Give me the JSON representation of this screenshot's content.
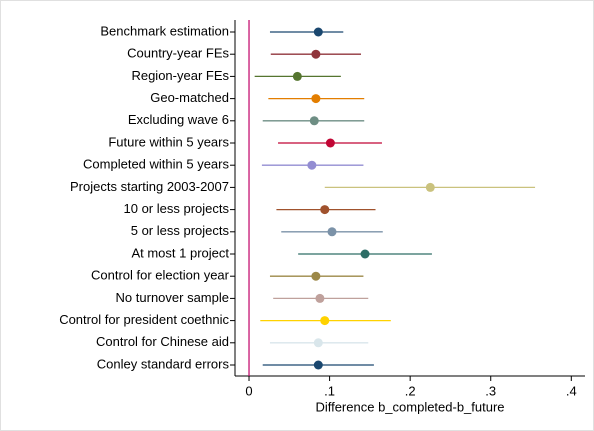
{
  "chart_data": {
    "type": "coefplot",
    "xlabel": "Difference b_completed-b_future",
    "categories": [
      "Benchmark estimation",
      "Country-year FEs",
      "Region-year FEs",
      "Geo-matched",
      "Excluding wave 6",
      "Future within 5 years",
      "Completed within 5 years",
      "Projects starting 2003-2007",
      "10 or less projects",
      "5 or less projects",
      "At most 1 project",
      "Control for election year",
      "No turnover sample",
      "Control for president coethnic",
      "Control for Chinese aid",
      "Conley standard errors"
    ],
    "values": [
      0.086,
      0.083,
      0.06,
      0.083,
      0.081,
      0.101,
      0.078,
      0.225,
      0.094,
      0.103,
      0.144,
      0.083,
      0.088,
      0.094,
      0.086,
      0.086
    ],
    "lower": [
      0.026,
      0.027,
      0.007,
      0.024,
      0.017,
      0.036,
      0.016,
      0.094,
      0.034,
      0.04,
      0.061,
      0.026,
      0.03,
      0.014,
      0.026,
      0.017
    ],
    "upper": [
      0.117,
      0.139,
      0.114,
      0.143,
      0.143,
      0.165,
      0.142,
      0.355,
      0.157,
      0.166,
      0.227,
      0.142,
      0.148,
      0.176,
      0.148,
      0.155
    ],
    "colors": [
      "#1a476f",
      "#90353b",
      "#55752f",
      "#e37e00",
      "#6e8e84",
      "#c10534",
      "#938dd2",
      "#cac27e",
      "#a0522d",
      "#7b92a8",
      "#2d6d66",
      "#9c8847",
      "#bfa19c",
      "#ffd200",
      "#d9e6eb",
      "#1a476f"
    ],
    "xlim": [
      -0.0174,
      0.417
    ],
    "xticks": [
      {
        "value": 0,
        "label": "0"
      },
      {
        "value": 0.1,
        "label": ".1"
      },
      {
        "value": 0.2,
        "label": ".2"
      },
      {
        "value": 0.3,
        "label": ".3"
      },
      {
        "value": 0.4,
        "label": ".4"
      }
    ],
    "xline": 0,
    "xline_color": "#c10066",
    "grid": false
  }
}
